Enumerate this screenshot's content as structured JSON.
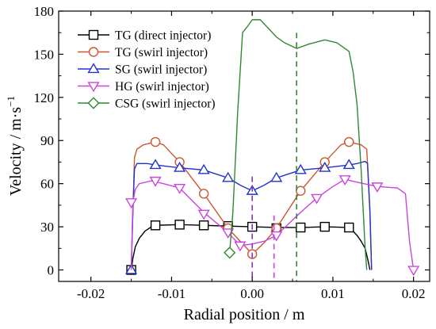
{
  "chart_data": {
    "type": "line",
    "title": "",
    "xlabel": "Radial position / m",
    "ylabel_main": "Velocity / m·s",
    "ylabel_sup": "−1",
    "xlim": [
      -0.024,
      0.022
    ],
    "ylim": [
      -8,
      180
    ],
    "x_ticks": [
      {
        "value": -0.02,
        "label": "-0.02"
      },
      {
        "value": -0.01,
        "label": "-0.01"
      },
      {
        "value": 0.0,
        "label": "0.00"
      },
      {
        "value": 0.01,
        "label": "0.01"
      },
      {
        "value": 0.02,
        "label": "0.02"
      }
    ],
    "y_ticks": [
      {
        "value": 0,
        "label": "0"
      },
      {
        "value": 30,
        "label": "30"
      },
      {
        "value": 60,
        "label": "60"
      },
      {
        "value": 90,
        "label": "90"
      },
      {
        "value": 120,
        "label": "120"
      },
      {
        "value": 150,
        "label": "150"
      },
      {
        "value": 180,
        "label": "180"
      }
    ],
    "legend_position": "top-left",
    "grid": false,
    "series": [
      {
        "name": "TG (direct injector)",
        "color": "#000000",
        "marker": "square",
        "points": [
          [
            -0.015,
            0
          ],
          [
            -0.0148,
            8
          ],
          [
            -0.0145,
            16
          ],
          [
            -0.014,
            22
          ],
          [
            -0.0133,
            27
          ],
          [
            -0.0125,
            30
          ],
          [
            -0.012,
            31
          ],
          [
            -0.009,
            31.5
          ],
          [
            -0.006,
            31
          ],
          [
            -0.003,
            30.5
          ],
          [
            0.0,
            30
          ],
          [
            0.003,
            29.5
          ],
          [
            0.006,
            29.5
          ],
          [
            0.009,
            30
          ],
          [
            0.012,
            29.5
          ],
          [
            0.0125,
            27
          ],
          [
            0.013,
            24
          ],
          [
            0.0135,
            20
          ],
          [
            0.014,
            15
          ],
          [
            0.0143,
            8
          ],
          [
            0.0146,
            0
          ]
        ],
        "marker_points": [
          [
            -0.015,
            0
          ],
          [
            -0.012,
            31
          ],
          [
            -0.009,
            31.5
          ],
          [
            -0.006,
            31
          ],
          [
            -0.003,
            30.5
          ],
          [
            0.0,
            30
          ],
          [
            0.003,
            29
          ],
          [
            0.006,
            29.5
          ],
          [
            0.009,
            30
          ],
          [
            0.012,
            29.5
          ]
        ]
      },
      {
        "name": "TG (swirl injector)",
        "color": "#cc5533",
        "marker": "circle",
        "points": [
          [
            -0.015,
            0
          ],
          [
            -0.0148,
            40
          ],
          [
            -0.0146,
            78
          ],
          [
            -0.0143,
            84
          ],
          [
            -0.0135,
            87
          ],
          [
            -0.012,
            89
          ],
          [
            -0.011,
            87
          ],
          [
            -0.009,
            75
          ],
          [
            -0.006,
            53
          ],
          [
            -0.003,
            29
          ],
          [
            -0.0015,
            20
          ],
          [
            0.0,
            11
          ],
          [
            0.0015,
            19
          ],
          [
            0.003,
            29
          ],
          [
            0.006,
            55
          ],
          [
            0.009,
            75
          ],
          [
            0.011,
            87
          ],
          [
            0.012,
            89
          ],
          [
            0.0135,
            87
          ],
          [
            0.0142,
            84
          ],
          [
            0.0146,
            40
          ],
          [
            0.0148,
            0
          ]
        ],
        "marker_points": [
          [
            -0.012,
            89
          ],
          [
            -0.009,
            75
          ],
          [
            -0.006,
            53
          ],
          [
            -0.003,
            29
          ],
          [
            0.0,
            11
          ],
          [
            0.003,
            29
          ],
          [
            0.006,
            55
          ],
          [
            0.009,
            75
          ],
          [
            0.012,
            89
          ]
        ]
      },
      {
        "name": "SG (swirl injector)",
        "color": "#2233cc",
        "marker": "triangle-up",
        "points": [
          [
            -0.015,
            0
          ],
          [
            -0.0148,
            40
          ],
          [
            -0.0146,
            70
          ],
          [
            -0.0143,
            74
          ],
          [
            -0.013,
            74
          ],
          [
            -0.012,
            73
          ],
          [
            -0.009,
            71
          ],
          [
            -0.006,
            69.5
          ],
          [
            -0.003,
            64
          ],
          [
            -0.0015,
            59
          ],
          [
            0.0,
            55
          ],
          [
            0.0015,
            59
          ],
          [
            0.003,
            64
          ],
          [
            0.006,
            69.5
          ],
          [
            0.009,
            71
          ],
          [
            0.012,
            73
          ],
          [
            0.013,
            74
          ],
          [
            0.014,
            75.5
          ],
          [
            0.0143,
            74
          ],
          [
            0.0146,
            40
          ],
          [
            0.0148,
            0
          ]
        ],
        "marker_points": [
          [
            -0.015,
            0
          ],
          [
            -0.012,
            73
          ],
          [
            -0.009,
            71
          ],
          [
            -0.006,
            69.5
          ],
          [
            -0.003,
            64
          ],
          [
            0.0,
            55
          ],
          [
            0.003,
            64
          ],
          [
            0.006,
            69.5
          ],
          [
            0.009,
            71
          ],
          [
            0.012,
            73
          ]
        ]
      },
      {
        "name": "HG (swirl injector)",
        "color": "#cc44dd",
        "marker": "triangle-down",
        "points": [
          [
            -0.015,
            0
          ],
          [
            -0.0148,
            47
          ],
          [
            -0.0145,
            56
          ],
          [
            -0.014,
            60
          ],
          [
            -0.0125,
            62
          ],
          [
            -0.011,
            60
          ],
          [
            -0.009,
            57
          ],
          [
            -0.006,
            40
          ],
          [
            -0.003,
            26
          ],
          [
            -0.0015,
            17
          ],
          [
            0.0,
            18
          ],
          [
            0.0015,
            20
          ],
          [
            0.003,
            24
          ],
          [
            0.006,
            40
          ],
          [
            0.008,
            50
          ],
          [
            0.01,
            58
          ],
          [
            0.0115,
            63
          ],
          [
            0.013,
            61
          ],
          [
            0.0155,
            58
          ],
          [
            0.018,
            57
          ],
          [
            0.019,
            53
          ],
          [
            0.0195,
            20
          ],
          [
            0.02,
            0
          ]
        ],
        "marker_points": [
          [
            -0.015,
            47
          ],
          [
            -0.012,
            62
          ],
          [
            -0.009,
            57
          ],
          [
            -0.006,
            39
          ],
          [
            -0.003,
            26
          ],
          [
            -0.0015,
            17
          ],
          [
            0.003,
            24
          ],
          [
            0.008,
            50
          ],
          [
            0.0115,
            63
          ],
          [
            0.0155,
            58
          ],
          [
            0.02,
            0
          ]
        ]
      },
      {
        "name": "CSG (swirl injector)",
        "color": "#338833",
        "marker": "diamond",
        "points": [
          [
            -0.0028,
            12
          ],
          [
            -0.0024,
            40
          ],
          [
            -0.0018,
            110
          ],
          [
            -0.0012,
            165
          ],
          [
            -0.0005,
            170
          ],
          [
            0.0,
            174
          ],
          [
            0.001,
            174
          ],
          [
            0.002,
            168
          ],
          [
            0.003,
            162
          ],
          [
            0.004,
            158
          ],
          [
            0.0055,
            154
          ],
          [
            0.007,
            157
          ],
          [
            0.009,
            160
          ],
          [
            0.0105,
            158
          ],
          [
            0.012,
            152
          ],
          [
            0.0125,
            138
          ],
          [
            0.013,
            115
          ],
          [
            0.0135,
            70
          ],
          [
            0.014,
            15
          ],
          [
            0.0142,
            0
          ]
        ],
        "marker_points": [
          [
            -0.0028,
            12
          ]
        ]
      }
    ],
    "reference_lines": [
      {
        "x": 0.0,
        "color": "#8833cc",
        "y_top": 65
      },
      {
        "x": 0.0027,
        "color": "#cc44dd",
        "y_top": 38
      },
      {
        "x": 0.0055,
        "color": "#338833",
        "y_top": 165
      }
    ]
  }
}
